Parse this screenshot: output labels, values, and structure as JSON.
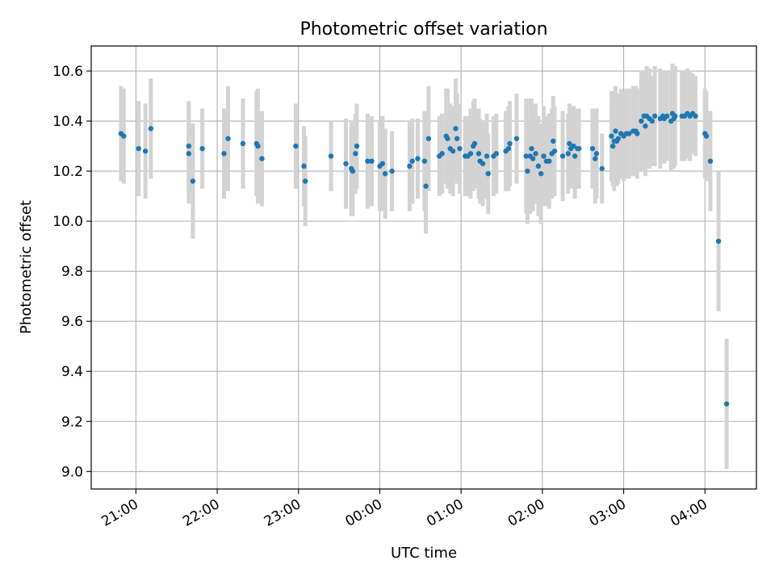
{
  "chart_data": {
    "type": "scatter",
    "title": "Photometric offset variation",
    "xlabel": "UTC time",
    "ylabel": "Photometric offset",
    "xlim": [
      "20:27",
      "04:38"
    ],
    "ylim": [
      8.93,
      10.7
    ],
    "x_ticks": [
      "21:00",
      "22:00",
      "23:00",
      "00:00",
      "01:00",
      "02:00",
      "03:00",
      "04:00"
    ],
    "y_ticks": [
      "9.0",
      "9.2",
      "9.4",
      "9.6",
      "9.8",
      "10.0",
      "10.2",
      "10.4",
      "10.6"
    ],
    "grid": true,
    "colors": {
      "point": "#1f77b4",
      "errorbar": "#d3d3d3",
      "grid": "#b0b0b0"
    },
    "series": [
      {
        "points": [
          {
            "x": "20:49",
            "y": 10.35,
            "err": 0.19
          },
          {
            "x": "20:51",
            "y": 10.34,
            "err": 0.19
          },
          {
            "x": "21:02",
            "y": 10.29,
            "err": 0.19
          },
          {
            "x": "21:07",
            "y": 10.28,
            "err": 0.19
          },
          {
            "x": "21:11",
            "y": 10.37,
            "err": 0.2
          },
          {
            "x": "21:39",
            "y": 10.3,
            "err": 0.18
          },
          {
            "x": "21:39",
            "y": 10.27,
            "err": 0.2
          },
          {
            "x": "21:42",
            "y": 10.16,
            "err": 0.23
          },
          {
            "x": "21:49",
            "y": 10.29,
            "err": 0.16
          },
          {
            "x": "22:05",
            "y": 10.27,
            "err": 0.18
          },
          {
            "x": "22:08",
            "y": 10.33,
            "err": 0.21
          },
          {
            "x": "22:19",
            "y": 10.31,
            "err": 0.18
          },
          {
            "x": "22:29",
            "y": 10.31,
            "err": 0.21
          },
          {
            "x": "22:30",
            "y": 10.3,
            "err": 0.23
          },
          {
            "x": "22:33",
            "y": 10.25,
            "err": 0.19
          },
          {
            "x": "22:58",
            "y": 10.3,
            "err": 0.17
          },
          {
            "x": "23:04",
            "y": 10.22,
            "err": 0.16
          },
          {
            "x": "23:05",
            "y": 10.16,
            "err": 0.18
          },
          {
            "x": "23:24",
            "y": 10.26,
            "err": 0.14
          },
          {
            "x": "23:35",
            "y": 10.23,
            "err": 0.18
          },
          {
            "x": "23:39",
            "y": 10.21,
            "err": 0.19
          },
          {
            "x": "23:40",
            "y": 10.2,
            "err": 0.18
          },
          {
            "x": "23:42",
            "y": 10.27,
            "err": 0.16
          },
          {
            "x": "23:43",
            "y": 10.3,
            "err": 0.17
          },
          {
            "x": "23:51",
            "y": 10.24,
            "err": 0.19
          },
          {
            "x": "23:54",
            "y": 10.24,
            "err": 0.18
          },
          {
            "x": "00:00",
            "y": 10.22,
            "err": 0.18
          },
          {
            "x": "00:02",
            "y": 10.23,
            "err": 0.19
          },
          {
            "x": "00:04",
            "y": 10.19,
            "err": 0.18
          },
          {
            "x": "00:09",
            "y": 10.2,
            "err": 0.16
          },
          {
            "x": "00:22",
            "y": 10.22,
            "err": 0.18
          },
          {
            "x": "00:24",
            "y": 10.24,
            "err": 0.17
          },
          {
            "x": "00:28",
            "y": 10.25,
            "err": 0.16
          },
          {
            "x": "00:33",
            "y": 10.24,
            "err": 0.2
          },
          {
            "x": "00:34",
            "y": 10.14,
            "err": 0.19
          },
          {
            "x": "00:36",
            "y": 10.33,
            "err": 0.21
          },
          {
            "x": "00:44",
            "y": 10.26,
            "err": 0.16
          },
          {
            "x": "00:46",
            "y": 10.27,
            "err": 0.16
          },
          {
            "x": "00:49",
            "y": 10.34,
            "err": 0.19
          },
          {
            "x": "00:50",
            "y": 10.33,
            "err": 0.2
          },
          {
            "x": "00:52",
            "y": 10.29,
            "err": 0.18
          },
          {
            "x": "00:54",
            "y": 10.28,
            "err": 0.18
          },
          {
            "x": "00:56",
            "y": 10.37,
            "err": 0.2
          },
          {
            "x": "00:57",
            "y": 10.33,
            "err": 0.18
          },
          {
            "x": "00:59",
            "y": 10.29,
            "err": 0.18
          },
          {
            "x": "01:03",
            "y": 10.26,
            "err": 0.16
          },
          {
            "x": "01:05",
            "y": 10.26,
            "err": 0.16
          },
          {
            "x": "01:07",
            "y": 10.27,
            "err": 0.18
          },
          {
            "x": "01:09",
            "y": 10.3,
            "err": 0.18
          },
          {
            "x": "01:10",
            "y": 10.31,
            "err": 0.18
          },
          {
            "x": "01:13",
            "y": 10.27,
            "err": 0.18
          },
          {
            "x": "01:14",
            "y": 10.24,
            "err": 0.17
          },
          {
            "x": "01:16",
            "y": 10.23,
            "err": 0.17
          },
          {
            "x": "01:19",
            "y": 10.26,
            "err": 0.17
          },
          {
            "x": "01:20",
            "y": 10.19,
            "err": 0.16
          },
          {
            "x": "01:24",
            "y": 10.26,
            "err": 0.16
          },
          {
            "x": "01:26",
            "y": 10.27,
            "err": 0.16
          },
          {
            "x": "01:33",
            "y": 10.28,
            "err": 0.16
          },
          {
            "x": "01:35",
            "y": 10.29,
            "err": 0.17
          },
          {
            "x": "01:36",
            "y": 10.31,
            "err": 0.17
          },
          {
            "x": "01:41",
            "y": 10.33,
            "err": 0.18
          },
          {
            "x": "01:48",
            "y": 10.26,
            "err": 0.23
          },
          {
            "x": "01:49",
            "y": 10.2,
            "err": 0.21
          },
          {
            "x": "01:51",
            "y": 10.26,
            "err": 0.23
          },
          {
            "x": "01:52",
            "y": 10.29,
            "err": 0.2
          },
          {
            "x": "01:53",
            "y": 10.25,
            "err": 0.21
          },
          {
            "x": "01:55",
            "y": 10.27,
            "err": 0.2
          },
          {
            "x": "01:57",
            "y": 10.22,
            "err": 0.2
          },
          {
            "x": "01:59",
            "y": 10.19,
            "err": 0.2
          },
          {
            "x": "02:01",
            "y": 10.26,
            "err": 0.2
          },
          {
            "x": "02:03",
            "y": 10.24,
            "err": 0.18
          },
          {
            "x": "02:05",
            "y": 10.24,
            "err": 0.19
          },
          {
            "x": "02:07",
            "y": 10.27,
            "err": 0.18
          },
          {
            "x": "02:08",
            "y": 10.32,
            "err": 0.18
          },
          {
            "x": "02:09",
            "y": 10.28,
            "err": 0.18
          },
          {
            "x": "02:15",
            "y": 10.26,
            "err": 0.18
          },
          {
            "x": "02:19",
            "y": 10.27,
            "err": 0.16
          },
          {
            "x": "02:20",
            "y": 10.31,
            "err": 0.16
          },
          {
            "x": "02:21",
            "y": 10.29,
            "err": 0.16
          },
          {
            "x": "02:23",
            "y": 10.3,
            "err": 0.16
          },
          {
            "x": "02:24",
            "y": 10.26,
            "err": 0.17
          },
          {
            "x": "02:26",
            "y": 10.29,
            "err": 0.16
          },
          {
            "x": "02:27",
            "y": 10.29,
            "err": 0.16
          },
          {
            "x": "02:37",
            "y": 10.29,
            "err": 0.16
          },
          {
            "x": "02:39",
            "y": 10.25,
            "err": 0.18
          },
          {
            "x": "02:40",
            "y": 10.27,
            "err": 0.18
          },
          {
            "x": "02:44",
            "y": 10.21,
            "err": 0.14
          },
          {
            "x": "02:51",
            "y": 10.34,
            "err": 0.18
          },
          {
            "x": "02:52",
            "y": 10.3,
            "err": 0.16
          },
          {
            "x": "02:53",
            "y": 10.32,
            "err": 0.2
          },
          {
            "x": "02:54",
            "y": 10.36,
            "err": 0.18
          },
          {
            "x": "02:55",
            "y": 10.32,
            "err": 0.18
          },
          {
            "x": "02:56",
            "y": 10.33,
            "err": 0.18
          },
          {
            "x": "02:58",
            "y": 10.35,
            "err": 0.18
          },
          {
            "x": "03:00",
            "y": 10.34,
            "err": 0.18
          },
          {
            "x": "03:02",
            "y": 10.35,
            "err": 0.18
          },
          {
            "x": "03:04",
            "y": 10.35,
            "err": 0.18
          },
          {
            "x": "03:07",
            "y": 10.36,
            "err": 0.18
          },
          {
            "x": "03:09",
            "y": 10.36,
            "err": 0.18
          },
          {
            "x": "03:10",
            "y": 10.35,
            "err": 0.18
          },
          {
            "x": "03:13",
            "y": 10.4,
            "err": 0.2
          },
          {
            "x": "03:15",
            "y": 10.42,
            "err": 0.18
          },
          {
            "x": "03:16",
            "y": 10.38,
            "err": 0.2
          },
          {
            "x": "03:17",
            "y": 10.42,
            "err": 0.2
          },
          {
            "x": "03:19",
            "y": 10.41,
            "err": 0.2
          },
          {
            "x": "03:21",
            "y": 10.4,
            "err": 0.18
          },
          {
            "x": "03:23",
            "y": 10.42,
            "err": 0.2
          },
          {
            "x": "03:27",
            "y": 10.41,
            "err": 0.2
          },
          {
            "x": "03:29",
            "y": 10.42,
            "err": 0.18
          },
          {
            "x": "03:30",
            "y": 10.41,
            "err": 0.18
          },
          {
            "x": "03:32",
            "y": 10.42,
            "err": 0.18
          },
          {
            "x": "03:35",
            "y": 10.4,
            "err": 0.2
          },
          {
            "x": "03:36",
            "y": 10.43,
            "err": 0.2
          },
          {
            "x": "03:37",
            "y": 10.41,
            "err": 0.2
          },
          {
            "x": "03:38",
            "y": 10.42,
            "err": 0.2
          },
          {
            "x": "03:43",
            "y": 10.42,
            "err": 0.18
          },
          {
            "x": "03:45",
            "y": 10.42,
            "err": 0.18
          },
          {
            "x": "03:47",
            "y": 10.43,
            "err": 0.18
          },
          {
            "x": "03:49",
            "y": 10.42,
            "err": 0.18
          },
          {
            "x": "03:51",
            "y": 10.43,
            "err": 0.16
          },
          {
            "x": "03:53",
            "y": 10.42,
            "err": 0.16
          },
          {
            "x": "04:00",
            "y": 10.35,
            "err": 0.18
          },
          {
            "x": "04:01",
            "y": 10.34,
            "err": 0.18
          },
          {
            "x": "04:04",
            "y": 10.24,
            "err": 0.2
          },
          {
            "x": "04:10",
            "y": 9.92,
            "err": 0.28
          },
          {
            "x": "04:16",
            "y": 9.27,
            "err": 0.26
          }
        ]
      }
    ]
  }
}
